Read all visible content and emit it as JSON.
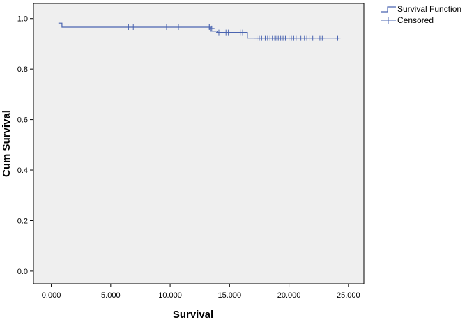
{
  "chart_data": {
    "type": "line",
    "xlabel": "Survival",
    "ylabel": "Cum Survival",
    "xlim": [
      -1.5,
      26.3
    ],
    "ylim": [
      -0.05,
      1.06
    ],
    "x_ticks": [
      0,
      5,
      10,
      15,
      20,
      25
    ],
    "x_tick_labels": [
      "0.000",
      "5.000",
      "10.000",
      "15.000",
      "20.000",
      "25.000"
    ],
    "y_ticks": [
      0,
      0.2,
      0.4,
      0.6,
      0.8,
      1.0
    ],
    "y_tick_labels": [
      "0.0",
      "0.2",
      "0.4",
      "0.6",
      "0.8",
      "1.0"
    ],
    "grid": false,
    "legend_position": "top-right, outside plot",
    "plot_background": "#efefef",
    "series": [
      {
        "name": "Survival Function",
        "color": "#4a64b0",
        "step_points": [
          [
            0.6,
            0.982
          ],
          [
            0.9,
            0.982
          ],
          [
            0.9,
            0.966
          ],
          [
            13.4,
            0.966
          ],
          [
            13.4,
            0.95
          ],
          [
            14.0,
            0.95
          ],
          [
            14.0,
            0.945
          ],
          [
            16.5,
            0.945
          ],
          [
            16.5,
            0.923
          ],
          [
            24.2,
            0.923
          ]
        ]
      },
      {
        "name": "Censored",
        "color": "#4a64b0",
        "points": [
          [
            6.5,
            0.966
          ],
          [
            6.9,
            0.966
          ],
          [
            9.7,
            0.966
          ],
          [
            10.7,
            0.966
          ],
          [
            13.2,
            0.966
          ],
          [
            13.3,
            0.966
          ],
          [
            13.5,
            0.961
          ],
          [
            14.1,
            0.945
          ],
          [
            14.7,
            0.945
          ],
          [
            14.9,
            0.945
          ],
          [
            15.9,
            0.945
          ],
          [
            16.1,
            0.945
          ],
          [
            17.3,
            0.923
          ],
          [
            17.5,
            0.923
          ],
          [
            17.7,
            0.923
          ],
          [
            18.0,
            0.923
          ],
          [
            18.2,
            0.923
          ],
          [
            18.4,
            0.923
          ],
          [
            18.6,
            0.923
          ],
          [
            18.8,
            0.923
          ],
          [
            18.9,
            0.923
          ],
          [
            19.0,
            0.923
          ],
          [
            19.1,
            0.923
          ],
          [
            19.3,
            0.923
          ],
          [
            19.5,
            0.923
          ],
          [
            19.7,
            0.923
          ],
          [
            20.0,
            0.923
          ],
          [
            20.2,
            0.923
          ],
          [
            20.4,
            0.923
          ],
          [
            20.6,
            0.923
          ],
          [
            21.0,
            0.923
          ],
          [
            21.3,
            0.923
          ],
          [
            21.5,
            0.923
          ],
          [
            21.7,
            0.923
          ],
          [
            22.0,
            0.923
          ],
          [
            22.6,
            0.923
          ],
          [
            22.8,
            0.923
          ],
          [
            24.1,
            0.923
          ]
        ]
      }
    ]
  }
}
